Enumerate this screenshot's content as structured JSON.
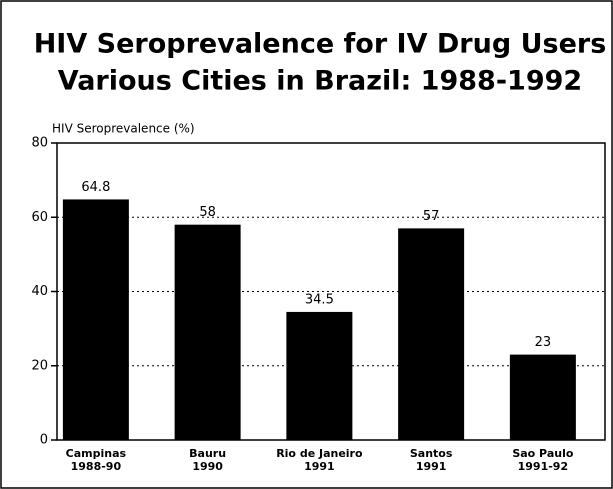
{
  "chart_data": {
    "type": "bar",
    "title": "HIV Seroprevalence for IV Drug Users",
    "subtitle": "Various Cities in Brazil:  1988-1992",
    "y_label": "HIV Seroprevalence (%)",
    "categories": [
      "Campinas\n1988-90",
      "Bauru\n1990",
      "Rio de Janeiro\n1991",
      "Santos\n1991",
      "Sao Paulo\n1991-92"
    ],
    "values": [
      64.8,
      58,
      34.5,
      57,
      23
    ],
    "color": "#000000",
    "ylim": [
      0,
      80
    ],
    "yticks": [
      0,
      20,
      40,
      60,
      80
    ],
    "grid": true
  }
}
